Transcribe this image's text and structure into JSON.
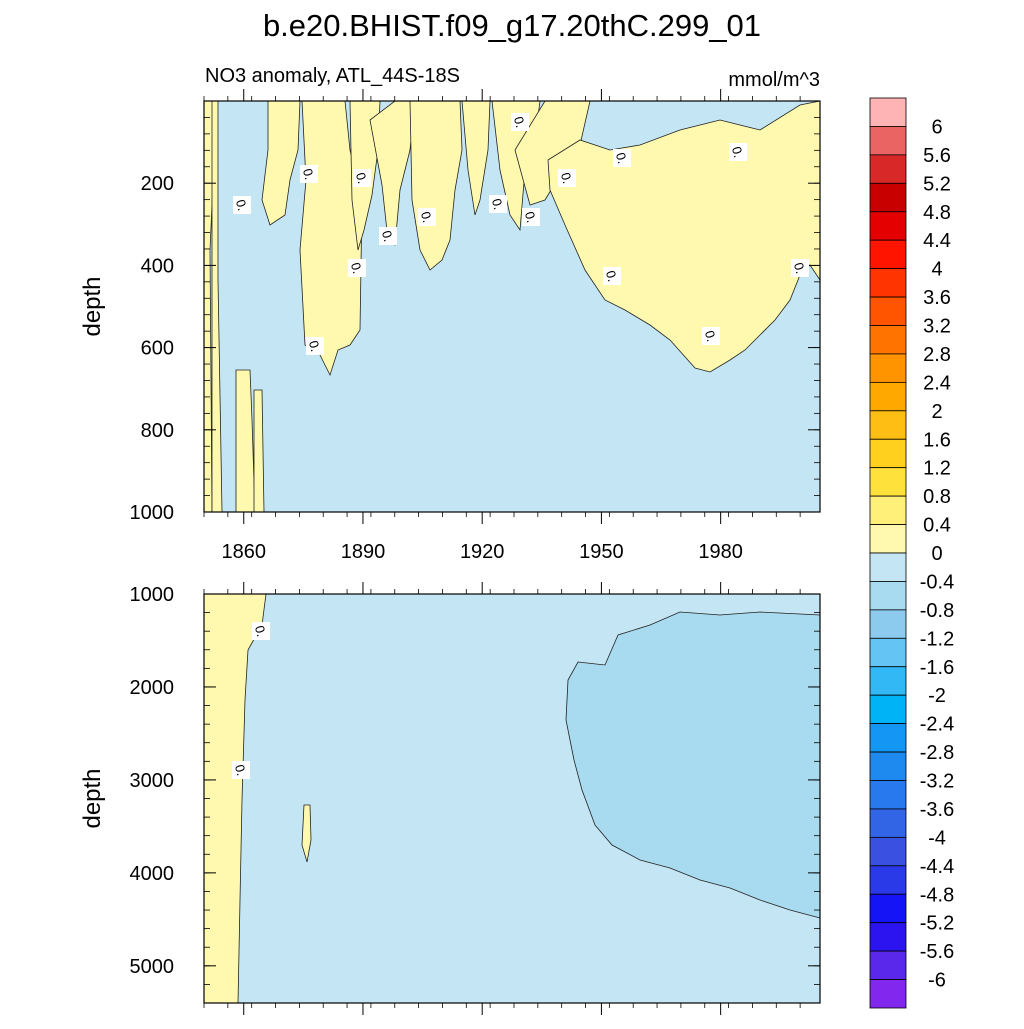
{
  "chart_data": {
    "type": "contour",
    "title": "b.e20.BHIST.f09_g17.20thC.299_01",
    "subtitle_left": "NO3 anomaly, ATL_44S-18S",
    "subtitle_right": "mmol/m^3",
    "xaxis": {
      "range": [
        1850,
        2005
      ],
      "ticks": [
        1860,
        1890,
        1920,
        1950,
        1980
      ],
      "tick_labels": [
        "1860",
        "1890",
        "1920",
        "1950",
        "1980"
      ]
    },
    "panels": [
      {
        "id": "upper",
        "ylabel": "depth",
        "ylim": [
          0,
          1000
        ],
        "yticks": [
          200,
          400,
          600,
          800,
          1000
        ],
        "ytick_labels": [
          "200",
          "400",
          "600",
          "800",
          "1000"
        ],
        "contour_labels": [
          "0.",
          "0.",
          "0.",
          "0.",
          "0.",
          "0.",
          "0.",
          "0.",
          "0.",
          "0.",
          "0.",
          "0.",
          "0.",
          "0.",
          "0.",
          "0."
        ]
      },
      {
        "id": "lower",
        "ylabel": "depth",
        "ylim": [
          1000,
          5400
        ],
        "yticks": [
          1000,
          2000,
          3000,
          4000,
          5000
        ],
        "ytick_labels": [
          "1000",
          "2000",
          "3000",
          "4000",
          "5000"
        ],
        "contour_labels": [
          "0.",
          "0."
        ]
      }
    ],
    "colorbar": {
      "labels": [
        "6",
        "5.6",
        "5.2",
        "4.8",
        "4.4",
        "4",
        "3.6",
        "3.2",
        "2.8",
        "2.4",
        "2",
        "1.6",
        "1.2",
        "0.8",
        "0.4",
        "0",
        "-0.4",
        "-0.8",
        "-1.2",
        "-1.6",
        "-2",
        "-2.4",
        "-2.8",
        "-3.2",
        "-3.6",
        "-4",
        "-4.4",
        "-4.8",
        "-5.2",
        "-5.6",
        "-6"
      ],
      "colors": [
        "#feb4b4",
        "#ea6464",
        "#d82828",
        "#c80000",
        "#e40000",
        "#ff1400",
        "#ff3400",
        "#ff5400",
        "#ff7400",
        "#ff9400",
        "#ffa800",
        "#ffbe14",
        "#ffd01e",
        "#ffe13c",
        "#fff07a",
        "#fff9b0",
        "#c4e6f4",
        "#a8daf0",
        "#8ccbee",
        "#64c4f4",
        "#32b8f4",
        "#00b2f6",
        "#1496f4",
        "#1e8af0",
        "#2878ee",
        "#3264e6",
        "#3a50e0",
        "#2a3ae8",
        "#1414f6",
        "#2c14f0",
        "#5a28ea",
        "#8228ee"
      ]
    },
    "colors": {
      "positive_fill": "#fff9b0",
      "negative_fill": "#c4e6f4",
      "negative_fill_2": "#a8daf0"
    }
  }
}
